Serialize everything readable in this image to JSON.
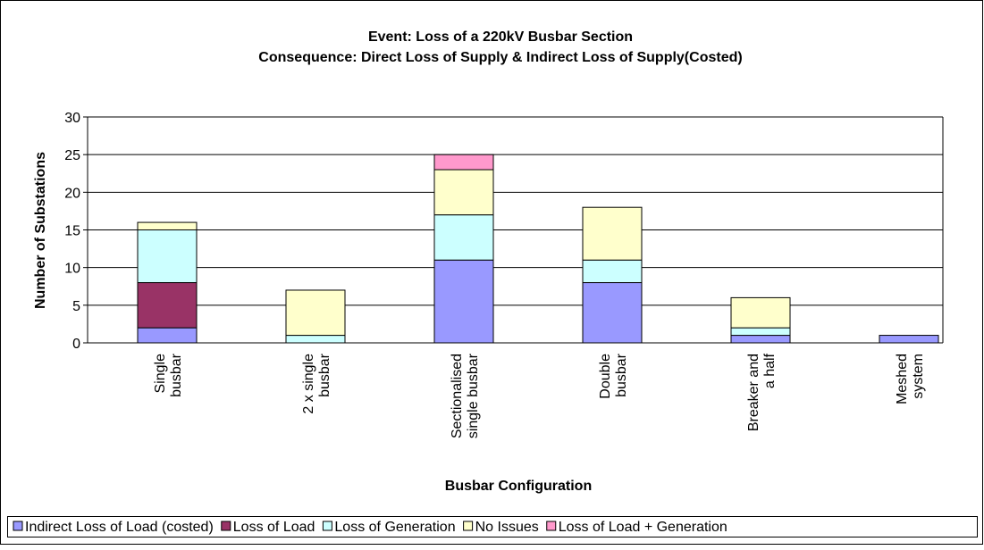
{
  "chart_data": {
    "type": "stacked_bar",
    "title": "Event: Loss of a 220kV Busbar Section",
    "subtitle": "Consequence: Direct Loss of Supply & Indirect Loss of Supply(Costed)",
    "x_label": "Busbar Configuration",
    "y_label": "Number of Substations",
    "categories": [
      "Single\nbusbar",
      "2 x single\nbusbar",
      "Sectionalised\nsingle busbar",
      "Double\nbusbar",
      "Breaker and\na half",
      "Meshed\nsystem"
    ],
    "series": [
      {
        "name": "Indirect Loss of Load (costed)",
        "color": "#9999ff",
        "values": [
          2,
          0,
          11,
          8,
          1,
          1
        ]
      },
      {
        "name": "Loss of Load",
        "color": "#993366",
        "values": [
          6,
          0,
          0,
          0,
          0,
          0
        ]
      },
      {
        "name": "Loss of Generation",
        "color": "#ccffff",
        "values": [
          7,
          1,
          6,
          3,
          1,
          0
        ]
      },
      {
        "name": "No Issues",
        "color": "#ffffcc",
        "values": [
          1,
          6,
          6,
          7,
          4,
          0
        ]
      },
      {
        "name": "Loss of Load + Generation",
        "color": "#ff99cc",
        "values": [
          0,
          0,
          2,
          0,
          0,
          0
        ]
      }
    ],
    "ylim": [
      0,
      30
    ],
    "yticks": [
      0,
      5,
      10,
      15,
      20,
      25,
      30
    ],
    "grid": true,
    "legend": "bottom"
  }
}
